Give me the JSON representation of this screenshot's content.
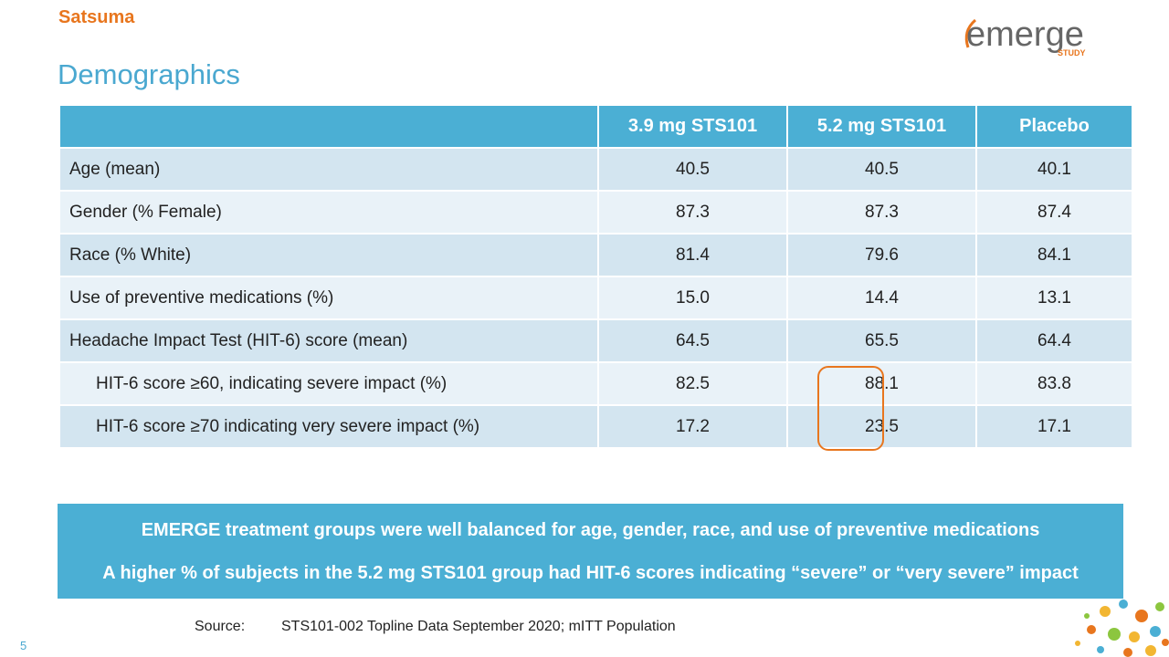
{
  "header": {
    "brand": "Satsuma",
    "study_logo": "emerge",
    "study_logo_sub": "STUDY",
    "title": "Demographics"
  },
  "table": {
    "columns": [
      "",
      "3.9 mg STS101",
      "5.2 mg STS101",
      "Placebo"
    ],
    "rows": [
      [
        "Age (mean)",
        "40.5",
        "40.5",
        "40.1"
      ],
      [
        "Gender (% Female)",
        "87.3",
        "87.3",
        "87.4"
      ],
      [
        "Race (% White)",
        "81.4",
        "79.6",
        "84.1"
      ],
      [
        "Use of preventive medications (%)",
        "15.0",
        "14.4",
        "13.1"
      ],
      [
        "Headache Impact Test (HIT-6) score (mean)",
        "64.5",
        "65.5",
        "64.4"
      ],
      [
        "HIT-6 score ≥60, indicating severe impact (%)",
        "82.5",
        "88.1",
        "83.8"
      ],
      [
        "HIT-6 score ≥70 indicating very severe impact (%)",
        "17.2",
        "23.5",
        "17.1"
      ]
    ]
  },
  "callout": [
    "EMERGE treatment groups were well balanced for age, gender, race, and use of preventive medications",
    "A higher % of subjects in the 5.2 mg STS101 group had HIT-6 scores indicating “severe” or “very severe” impact"
  ],
  "footer": {
    "source_label": "Source:",
    "source": "STS101-002 Topline Data September 2020; mITT Population",
    "page": "5"
  }
}
